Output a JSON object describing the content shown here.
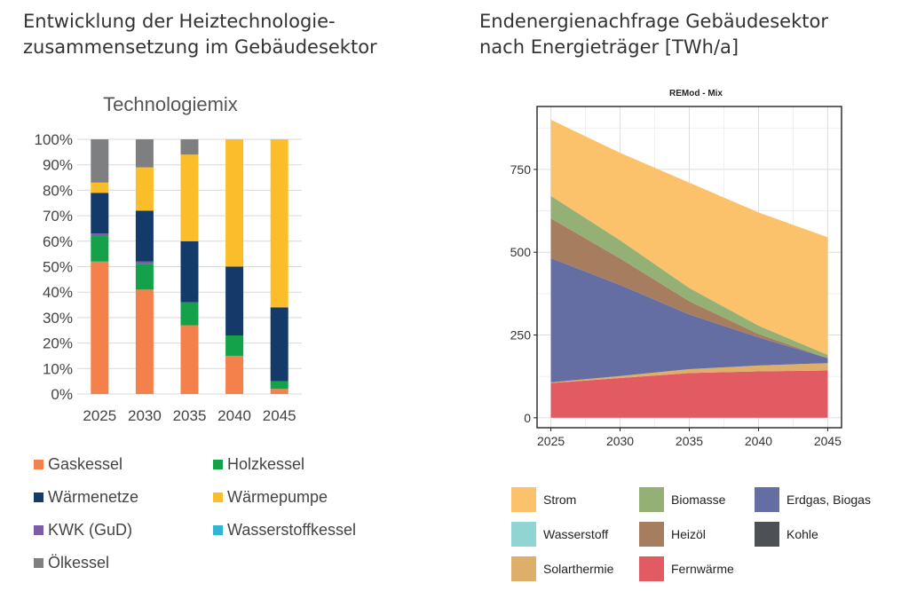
{
  "left_panel": {
    "heading_lines": [
      "Entwicklung der Heiztechnologie-",
      "zusammensetzung im Gebäudesektor"
    ]
  },
  "right_panel": {
    "heading_lines": [
      "Endenergienachfrage Gebäudesektor",
      "nach Energieträger [TWh/a]"
    ]
  },
  "chart_data": [
    {
      "type": "bar",
      "stacked": true,
      "title": "Technologiemix",
      "categories": [
        "2025",
        "2030",
        "2035",
        "2040",
        "2045"
      ],
      "ylim": [
        0,
        100
      ],
      "yticks": [
        "0%",
        "10%",
        "20%",
        "30%",
        "40%",
        "50%",
        "60%",
        "70%",
        "80%",
        "90%",
        "100%"
      ],
      "grid": true,
      "legend": "bottom",
      "series": [
        {
          "name": "Gaskessel",
          "color": "#F4804B",
          "values": [
            52,
            41,
            27,
            15,
            2
          ]
        },
        {
          "name": "Holzkessel",
          "color": "#13A24A",
          "values": [
            10,
            10,
            9,
            8,
            3
          ]
        },
        {
          "name": "KWK (GuD)",
          "color": "#7B5CA8",
          "values": [
            1,
            1,
            0,
            0,
            0
          ]
        },
        {
          "name": "Wärmenetze",
          "color": "#143A6A",
          "values": [
            16,
            20,
            24,
            27,
            29
          ]
        },
        {
          "name": "Wärmepumpe",
          "color": "#FBBE2A",
          "values": [
            4,
            17,
            34,
            50,
            66
          ]
        },
        {
          "name": "Wasserstoffkessel",
          "color": "#35B4D0",
          "values": [
            0,
            0,
            0,
            0,
            0
          ]
        },
        {
          "name": "Ölkessel",
          "color": "#7E7F81",
          "values": [
            17,
            11,
            6,
            0,
            0
          ]
        }
      ],
      "legend_order": [
        "Gaskessel",
        "Holzkessel",
        "Wärmenetze",
        "Wärmepumpe",
        "KWK (GuD)",
        "Wasserstoffkessel",
        "Ölkessel"
      ]
    },
    {
      "type": "area",
      "stacked": true,
      "title": "REMod - Mix",
      "x": [
        2025,
        2030,
        2035,
        2040,
        2045
      ],
      "xticks": [
        "2025",
        "2030",
        "2035",
        "2040",
        "2045"
      ],
      "ylim": [
        -30,
        940
      ],
      "yticks": [
        0,
        250,
        500,
        750
      ],
      "ytick_labels": [
        "0",
        "250",
        "500",
        "750"
      ],
      "grid": true,
      "legend": "bottom",
      "series": [
        {
          "name": "Fernwärme",
          "color": "#E25A62",
          "values": [
            105,
            120,
            135,
            140,
            143
          ]
        },
        {
          "name": "Solarthermie",
          "color": "#DDAF6A",
          "values": [
            2,
            6,
            12,
            18,
            22
          ]
        },
        {
          "name": "Kohle",
          "color": "#4D5054",
          "values": [
            0,
            0,
            0,
            0,
            0
          ]
        },
        {
          "name": "Erdgas, Biogas",
          "color": "#656EA3",
          "values": [
            375,
            275,
            165,
            85,
            15
          ]
        },
        {
          "name": "Heizöl",
          "color": "#A77D5F",
          "values": [
            120,
            80,
            40,
            10,
            0
          ]
        },
        {
          "name": "Wasserstoff",
          "color": "#90D5D3",
          "values": [
            0,
            0,
            0,
            0,
            0
          ]
        },
        {
          "name": "Biomasse",
          "color": "#95B075",
          "values": [
            68,
            55,
            40,
            25,
            10
          ]
        },
        {
          "name": "Strom",
          "color": "#FBC26B",
          "values": [
            230,
            264,
            318,
            342,
            355
          ]
        }
      ],
      "legend_order": [
        "Strom",
        "Biomasse",
        "Erdgas, Biogas",
        "Wasserstoff",
        "Heizöl",
        "Kohle",
        "Solarthermie",
        "Fernwärme"
      ]
    }
  ]
}
